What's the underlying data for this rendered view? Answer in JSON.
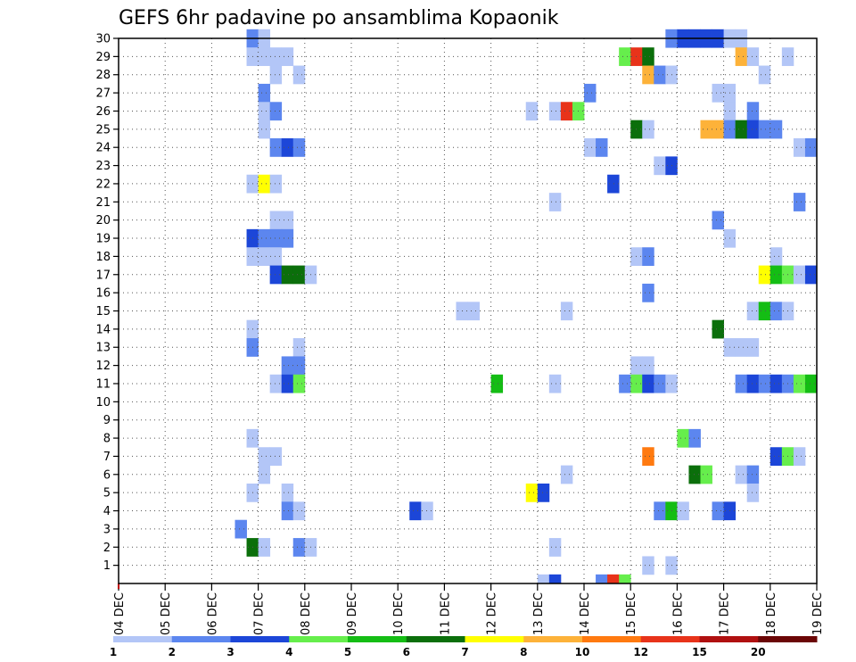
{
  "chart_data": {
    "type": "heatmap",
    "title": "GEFS 6hr padavine po ansamblima Kopaonik",
    "y_ticks": [
      "1",
      "2",
      "3",
      "4",
      "5",
      "6",
      "7",
      "8",
      "9",
      "10",
      "11",
      "12",
      "13",
      "14",
      "15",
      "16",
      "17",
      "18",
      "19",
      "20",
      "21",
      "22",
      "23",
      "24",
      "25",
      "26",
      "27",
      "28",
      "29",
      "30"
    ],
    "x_ticks": [
      "04 DEC",
      "05 DEC",
      "06 DEC",
      "07 DEC",
      "08 DEC",
      "09 DEC",
      "10 DEC",
      "11 DEC",
      "12 DEC",
      "13 DEC",
      "14 DEC",
      "15 DEC",
      "16 DEC",
      "17 DEC",
      "18 DEC",
      "19 DEC"
    ],
    "x_range_days": [
      0,
      15
    ],
    "y_range": [
      0,
      30
    ],
    "grid": true,
    "colorbar": {
      "tick_labels": [
        "1",
        "2",
        "3",
        "4",
        "5",
        "6",
        "7",
        "8",
        "10",
        "12",
        "15",
        "20"
      ],
      "colors": [
        "#b3c6f7",
        "#5c86ef",
        "#1c46d8",
        "#66ee4c",
        "#14bd14",
        "#0b6f0b",
        "#ffff00",
        "#fdb239",
        "#ff7a10",
        "#e8331a",
        "#b01010",
        "#6b0606"
      ]
    },
    "cells": [
      {
        "day": 2.75,
        "member": 30,
        "level": 2
      },
      {
        "day": 3.0,
        "member": 30,
        "level": 1
      },
      {
        "day": 11.75,
        "member": 30,
        "level": 2
      },
      {
        "day": 12.0,
        "member": 30,
        "level": 3
      },
      {
        "day": 12.25,
        "member": 30,
        "level": 3
      },
      {
        "day": 12.5,
        "member": 30,
        "level": 3
      },
      {
        "day": 12.75,
        "member": 30,
        "level": 3
      },
      {
        "day": 13.0,
        "member": 30,
        "level": 1
      },
      {
        "day": 13.25,
        "member": 30,
        "level": 1
      },
      {
        "day": 2.75,
        "member": 29,
        "level": 1
      },
      {
        "day": 3.0,
        "member": 29,
        "level": 1
      },
      {
        "day": 3.25,
        "member": 29,
        "level": 1
      },
      {
        "day": 3.5,
        "member": 29,
        "level": 1
      },
      {
        "day": 10.75,
        "member": 29,
        "level": 4
      },
      {
        "day": 11.0,
        "member": 29,
        "level": 10
      },
      {
        "day": 11.25,
        "member": 29,
        "level": 6
      },
      {
        "day": 13.25,
        "member": 29,
        "level": 8
      },
      {
        "day": 13.5,
        "member": 29,
        "level": 1
      },
      {
        "day": 14.25,
        "member": 29,
        "level": 1
      },
      {
        "day": 3.25,
        "member": 28,
        "level": 1
      },
      {
        "day": 3.75,
        "member": 28,
        "level": 1
      },
      {
        "day": 11.25,
        "member": 28,
        "level": 8
      },
      {
        "day": 11.5,
        "member": 28,
        "level": 2
      },
      {
        "day": 11.75,
        "member": 28,
        "level": 1
      },
      {
        "day": 13.75,
        "member": 28,
        "level": 1
      },
      {
        "day": 3.0,
        "member": 27,
        "level": 2
      },
      {
        "day": 10.0,
        "member": 27,
        "level": 2
      },
      {
        "day": 12.75,
        "member": 27,
        "level": 1
      },
      {
        "day": 13.0,
        "member": 27,
        "level": 1
      },
      {
        "day": 3.0,
        "member": 26,
        "level": 1
      },
      {
        "day": 3.25,
        "member": 26,
        "level": 2
      },
      {
        "day": 8.75,
        "member": 26,
        "level": 1
      },
      {
        "day": 9.25,
        "member": 26,
        "level": 1
      },
      {
        "day": 9.5,
        "member": 26,
        "level": 10
      },
      {
        "day": 9.75,
        "member": 26,
        "level": 4
      },
      {
        "day": 13.0,
        "member": 26,
        "level": 1
      },
      {
        "day": 13.5,
        "member": 26,
        "level": 2
      },
      {
        "day": 3.0,
        "member": 25,
        "level": 1
      },
      {
        "day": 11.0,
        "member": 25,
        "level": 6
      },
      {
        "day": 11.25,
        "member": 25,
        "level": 1
      },
      {
        "day": 12.5,
        "member": 25,
        "level": 8
      },
      {
        "day": 12.75,
        "member": 25,
        "level": 8
      },
      {
        "day": 13.0,
        "member": 25,
        "level": 2
      },
      {
        "day": 13.25,
        "member": 25,
        "level": 6
      },
      {
        "day": 13.5,
        "member": 25,
        "level": 3
      },
      {
        "day": 13.75,
        "member": 25,
        "level": 2
      },
      {
        "day": 14.0,
        "member": 25,
        "level": 2
      },
      {
        "day": 3.25,
        "member": 24,
        "level": 2
      },
      {
        "day": 3.5,
        "member": 24,
        "level": 3
      },
      {
        "day": 3.75,
        "member": 24,
        "level": 2
      },
      {
        "day": 10.0,
        "member": 24,
        "level": 1
      },
      {
        "day": 10.25,
        "member": 24,
        "level": 2
      },
      {
        "day": 14.5,
        "member": 24,
        "level": 1
      },
      {
        "day": 14.75,
        "member": 24,
        "level": 2
      },
      {
        "day": 11.5,
        "member": 23,
        "level": 1
      },
      {
        "day": 11.75,
        "member": 23,
        "level": 3
      },
      {
        "day": 2.75,
        "member": 22,
        "level": 1
      },
      {
        "day": 3.0,
        "member": 22,
        "level": 7
      },
      {
        "day": 3.25,
        "member": 22,
        "level": 1
      },
      {
        "day": 10.5,
        "member": 22,
        "level": 3
      },
      {
        "day": 9.25,
        "member": 21,
        "level": 1
      },
      {
        "day": 14.5,
        "member": 21,
        "level": 2
      },
      {
        "day": 3.25,
        "member": 20,
        "level": 1
      },
      {
        "day": 3.5,
        "member": 20,
        "level": 1
      },
      {
        "day": 12.75,
        "member": 20,
        "level": 2
      },
      {
        "day": 2.75,
        "member": 19,
        "level": 3
      },
      {
        "day": 3.0,
        "member": 19,
        "level": 2
      },
      {
        "day": 3.25,
        "member": 19,
        "level": 2
      },
      {
        "day": 3.5,
        "member": 19,
        "level": 2
      },
      {
        "day": 13.0,
        "member": 19,
        "level": 1
      },
      {
        "day": 2.75,
        "member": 18,
        "level": 1
      },
      {
        "day": 3.0,
        "member": 18,
        "level": 1
      },
      {
        "day": 3.25,
        "member": 18,
        "level": 1
      },
      {
        "day": 11.0,
        "member": 18,
        "level": 1
      },
      {
        "day": 11.25,
        "member": 18,
        "level": 2
      },
      {
        "day": 14.0,
        "member": 18,
        "level": 1
      },
      {
        "day": 3.25,
        "member": 17,
        "level": 3
      },
      {
        "day": 3.5,
        "member": 17,
        "level": 6
      },
      {
        "day": 3.75,
        "member": 17,
        "level": 6
      },
      {
        "day": 4.0,
        "member": 17,
        "level": 1
      },
      {
        "day": 13.75,
        "member": 17,
        "level": 7
      },
      {
        "day": 14.0,
        "member": 17,
        "level": 5
      },
      {
        "day": 14.25,
        "member": 17,
        "level": 4
      },
      {
        "day": 14.5,
        "member": 17,
        "level": 1
      },
      {
        "day": 14.75,
        "member": 17,
        "level": 3
      },
      {
        "day": 11.25,
        "member": 16,
        "level": 2
      },
      {
        "day": 7.25,
        "member": 15,
        "level": 1
      },
      {
        "day": 7.5,
        "member": 15,
        "level": 1
      },
      {
        "day": 9.5,
        "member": 15,
        "level": 1
      },
      {
        "day": 13.5,
        "member": 15,
        "level": 1
      },
      {
        "day": 13.75,
        "member": 15,
        "level": 5
      },
      {
        "day": 14.0,
        "member": 15,
        "level": 2
      },
      {
        "day": 14.25,
        "member": 15,
        "level": 1
      },
      {
        "day": 2.75,
        "member": 14,
        "level": 1
      },
      {
        "day": 12.75,
        "member": 14,
        "level": 6
      },
      {
        "day": 2.75,
        "member": 13,
        "level": 2
      },
      {
        "day": 3.75,
        "member": 13,
        "level": 1
      },
      {
        "day": 13.0,
        "member": 13,
        "level": 1
      },
      {
        "day": 13.25,
        "member": 13,
        "level": 1
      },
      {
        "day": 13.5,
        "member": 13,
        "level": 1
      },
      {
        "day": 3.5,
        "member": 12,
        "level": 2
      },
      {
        "day": 3.75,
        "member": 12,
        "level": 2
      },
      {
        "day": 11.0,
        "member": 12,
        "level": 1
      },
      {
        "day": 11.25,
        "member": 12,
        "level": 1
      },
      {
        "day": 3.25,
        "member": 11,
        "level": 1
      },
      {
        "day": 3.5,
        "member": 11,
        "level": 3
      },
      {
        "day": 3.75,
        "member": 11,
        "level": 4
      },
      {
        "day": 8.0,
        "member": 11,
        "level": 5
      },
      {
        "day": 9.25,
        "member": 11,
        "level": 1
      },
      {
        "day": 10.75,
        "member": 11,
        "level": 2
      },
      {
        "day": 11.0,
        "member": 11,
        "level": 4
      },
      {
        "day": 11.25,
        "member": 11,
        "level": 3
      },
      {
        "day": 11.5,
        "member": 11,
        "level": 2
      },
      {
        "day": 11.75,
        "member": 11,
        "level": 1
      },
      {
        "day": 13.25,
        "member": 11,
        "level": 2
      },
      {
        "day": 13.5,
        "member": 11,
        "level": 3
      },
      {
        "day": 13.75,
        "member": 11,
        "level": 2
      },
      {
        "day": 14.0,
        "member": 11,
        "level": 3
      },
      {
        "day": 14.25,
        "member": 11,
        "level": 2
      },
      {
        "day": 14.5,
        "member": 11,
        "level": 4
      },
      {
        "day": 14.75,
        "member": 11,
        "level": 5
      },
      {
        "day": 12.0,
        "member": 8,
        "level": 4
      },
      {
        "day": 12.25,
        "member": 8,
        "level": 2
      },
      {
        "day": 2.75,
        "member": 8,
        "level": 1
      },
      {
        "day": 3.0,
        "member": 7,
        "level": 1
      },
      {
        "day": 3.25,
        "member": 7,
        "level": 1
      },
      {
        "day": 11.25,
        "member": 7,
        "level": 9
      },
      {
        "day": 14.0,
        "member": 7,
        "level": 3
      },
      {
        "day": 14.25,
        "member": 7,
        "level": 4
      },
      {
        "day": 14.5,
        "member": 7,
        "level": 1
      },
      {
        "day": 3.0,
        "member": 6,
        "level": 1
      },
      {
        "day": 9.5,
        "member": 6,
        "level": 1
      },
      {
        "day": 12.25,
        "member": 6,
        "level": 6
      },
      {
        "day": 12.5,
        "member": 6,
        "level": 4
      },
      {
        "day": 13.25,
        "member": 6,
        "level": 1
      },
      {
        "day": 13.5,
        "member": 6,
        "level": 2
      },
      {
        "day": 2.75,
        "member": 5,
        "level": 1
      },
      {
        "day": 3.5,
        "member": 5,
        "level": 1
      },
      {
        "day": 8.75,
        "member": 5,
        "level": 7
      },
      {
        "day": 9.0,
        "member": 5,
        "level": 3
      },
      {
        "day": 13.5,
        "member": 5,
        "level": 1
      },
      {
        "day": 3.5,
        "member": 4,
        "level": 2
      },
      {
        "day": 3.75,
        "member": 4,
        "level": 1
      },
      {
        "day": 6.25,
        "member": 4,
        "level": 3
      },
      {
        "day": 6.5,
        "member": 4,
        "level": 1
      },
      {
        "day": 11.5,
        "member": 4,
        "level": 2
      },
      {
        "day": 11.75,
        "member": 4,
        "level": 5
      },
      {
        "day": 12.0,
        "member": 4,
        "level": 1
      },
      {
        "day": 12.75,
        "member": 4,
        "level": 2
      },
      {
        "day": 13.0,
        "member": 4,
        "level": 3
      },
      {
        "day": 2.5,
        "member": 3,
        "level": 2
      },
      {
        "day": 2.75,
        "member": 2,
        "level": 6
      },
      {
        "day": 3.0,
        "member": 2,
        "level": 1
      },
      {
        "day": 3.75,
        "member": 2,
        "level": 2
      },
      {
        "day": 4.0,
        "member": 2,
        "level": 1
      },
      {
        "day": 9.25,
        "member": 2,
        "level": 1
      },
      {
        "day": 11.25,
        "member": 1,
        "level": 1
      },
      {
        "day": 11.75,
        "member": 1,
        "level": 1
      },
      {
        "day": 9.0,
        "member": 0,
        "level": 1
      },
      {
        "day": 9.25,
        "member": 0,
        "level": 3
      },
      {
        "day": 10.25,
        "member": 0,
        "level": 2
      },
      {
        "day": 10.5,
        "member": 0,
        "level": 10
      },
      {
        "day": 10.75,
        "member": 0,
        "level": 4
      }
    ]
  }
}
